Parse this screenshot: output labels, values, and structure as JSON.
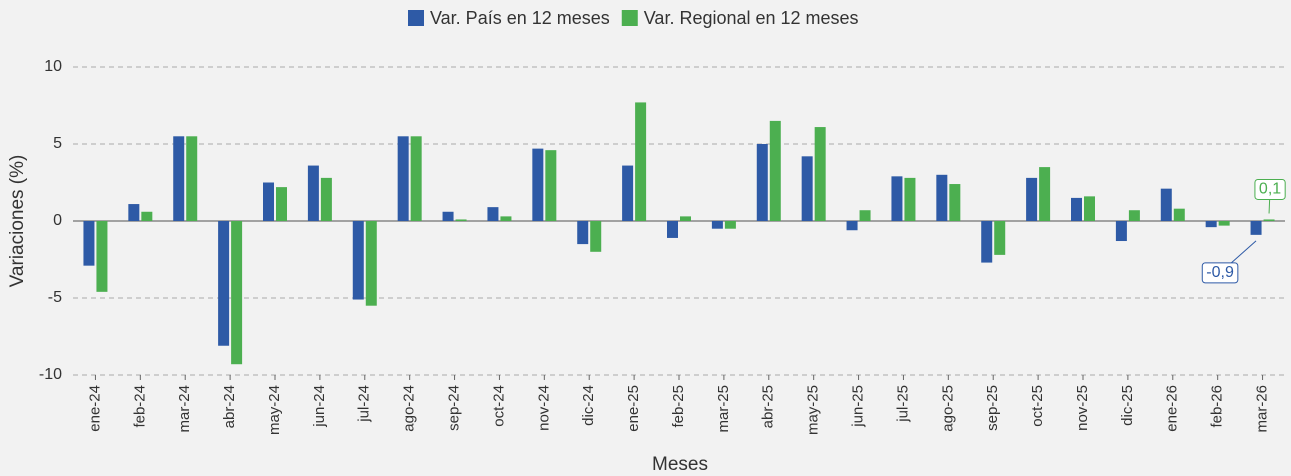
{
  "chart_data": {
    "type": "bar",
    "xlabel": "Meses",
    "ylabel": "Variaciones (%)",
    "categories": [
      "ene-24",
      "feb-24",
      "mar-24",
      "abr-24",
      "may-24",
      "jun-24",
      "jul-24",
      "ago-24",
      "sep-24",
      "oct-24",
      "nov-24",
      "dic-24",
      "ene-25",
      "feb-25",
      "mar-25",
      "abr-25",
      "may-25",
      "jun-25",
      "jul-25",
      "ago-25",
      "sep-25",
      "oct-25",
      "nov-25",
      "dic-25",
      "ene-26",
      "feb-26",
      "mar-26"
    ],
    "series": [
      {
        "name": "Var. País en 12 meses",
        "color": "#2e5aa6",
        "values": [
          -2.9,
          1.1,
          5.5,
          -8.1,
          2.5,
          3.6,
          -5.1,
          5.5,
          0.6,
          0.9,
          4.7,
          -1.5,
          3.6,
          -1.1,
          -0.5,
          5.0,
          4.2,
          -0.6,
          2.9,
          3.0,
          -2.7,
          2.8,
          1.5,
          -1.3,
          2.1,
          -0.4,
          -0.9
        ],
        "value_labels": [
          null,
          null,
          null,
          null,
          null,
          null,
          null,
          null,
          null,
          null,
          null,
          null,
          null,
          null,
          null,
          null,
          null,
          null,
          null,
          null,
          null,
          null,
          null,
          null,
          null,
          null,
          "-0,9"
        ]
      },
      {
        "name": "Var. Regional en 12 meses",
        "color": "#4caf50",
        "values": [
          -4.6,
          0.6,
          5.5,
          -9.3,
          2.2,
          2.8,
          -5.5,
          5.5,
          0.1,
          0.3,
          4.6,
          -2.0,
          7.7,
          0.3,
          -0.5,
          6.5,
          6.1,
          0.7,
          2.8,
          2.4,
          -2.2,
          3.5,
          1.6,
          0.7,
          0.8,
          -0.3,
          0.1
        ],
        "value_labels": [
          null,
          null,
          null,
          null,
          null,
          null,
          null,
          null,
          null,
          null,
          null,
          null,
          null,
          null,
          null,
          null,
          null,
          null,
          null,
          null,
          null,
          null,
          null,
          null,
          null,
          null,
          "0,1"
        ]
      }
    ],
    "ylim": [
      -10,
      10
    ],
    "yticks": [
      -10,
      -5,
      0,
      5,
      10
    ],
    "grid": true,
    "legend": "top"
  }
}
